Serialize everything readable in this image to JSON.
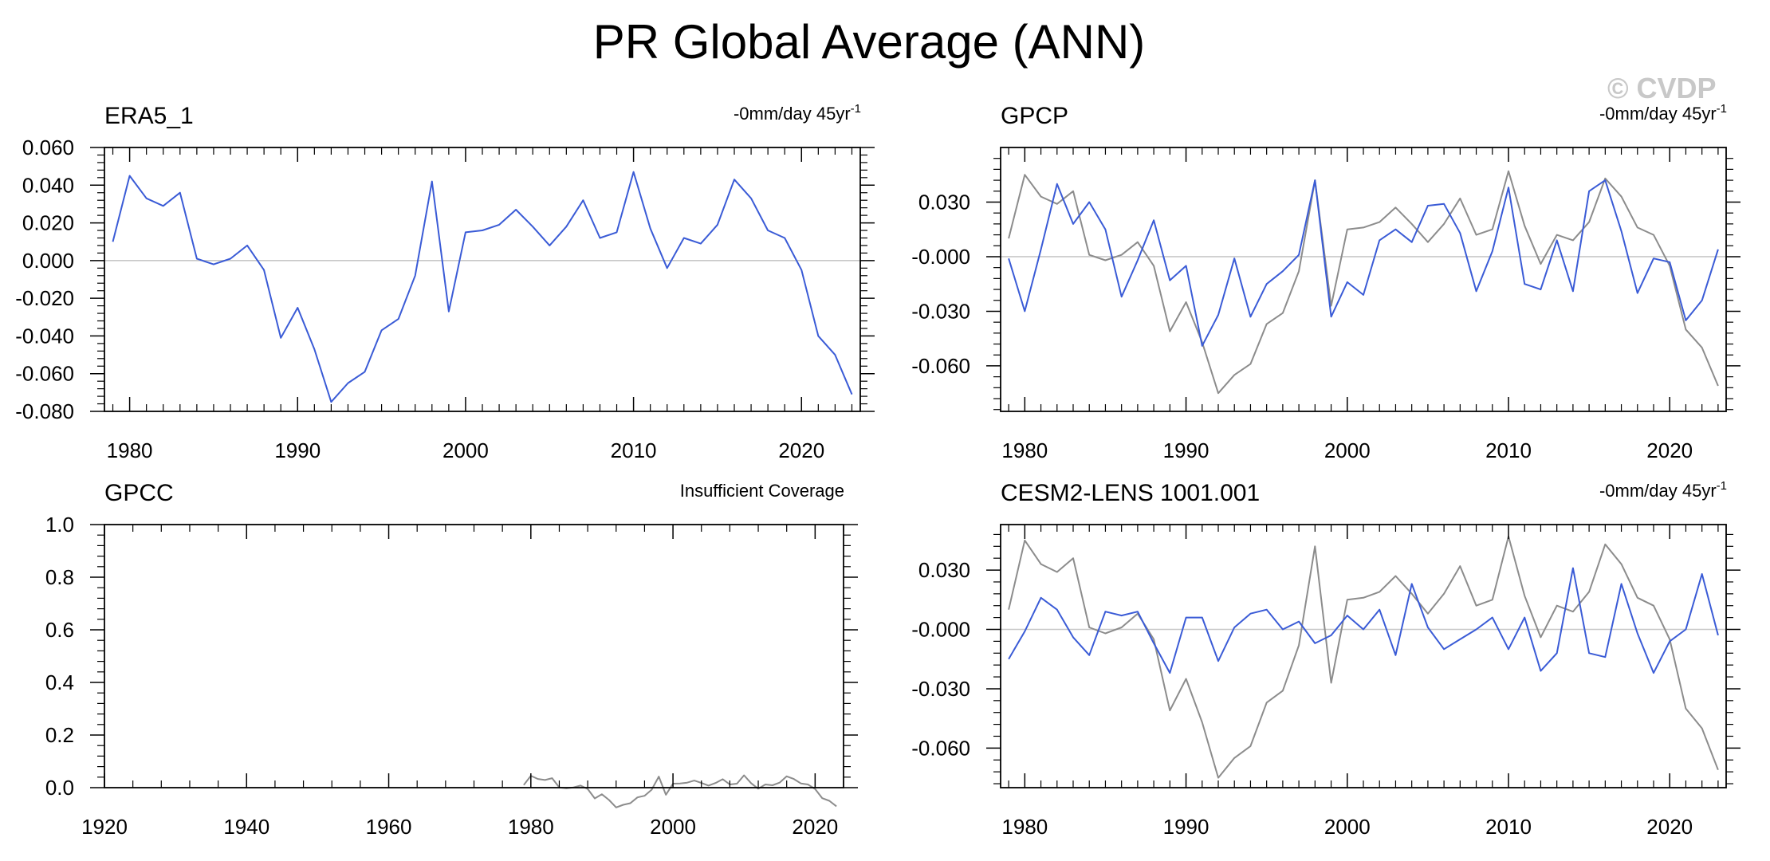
{
  "title": "PR Global Average (ANN)",
  "watermark": "© CVDP",
  "colors": {
    "primary": "#3a5bd6",
    "reference": "#8c8c8c",
    "zero": "#c8c8c8",
    "axis": "#000000"
  },
  "chart_data": [
    {
      "type": "line",
      "title": "ERA5_1",
      "trend_label": {
        "text": "-0mm/day 45yr",
        "sup": "-1"
      },
      "xlabel": "",
      "ylabel": "",
      "xlim": [
        1978.5,
        2023.5
      ],
      "ylim": [
        -0.08,
        0.06
      ],
      "xticks": [
        1980,
        1990,
        2000,
        2010,
        2020
      ],
      "yticks": [
        -0.08,
        -0.06,
        -0.04,
        -0.02,
        0.0,
        0.02,
        0.04,
        0.06
      ],
      "ytick_labels": [
        "-0.080",
        "-0.060",
        "-0.040",
        "-0.020",
        "0.000",
        "0.020",
        "0.040",
        "0.060"
      ],
      "zero_line": true,
      "series": [
        {
          "name": "ERA5_1",
          "role": "primary",
          "x_start": 1979,
          "values": [
            0.01,
            0.045,
            0.033,
            0.029,
            0.036,
            0.001,
            -0.002,
            0.001,
            0.008,
            -0.005,
            -0.041,
            -0.025,
            -0.047,
            -0.075,
            -0.065,
            -0.059,
            -0.037,
            -0.031,
            -0.008,
            0.042,
            -0.027,
            0.015,
            0.016,
            0.019,
            0.027,
            0.018,
            0.008,
            0.018,
            0.032,
            0.012,
            0.015,
            0.047,
            0.017,
            -0.004,
            0.012,
            0.009,
            0.019,
            0.043,
            0.033,
            0.016,
            0.012,
            -0.005,
            -0.04,
            -0.05,
            -0.071
          ]
        }
      ]
    },
    {
      "type": "line",
      "title": "GPCP",
      "trend_label": {
        "text": "-0mm/day 45yr",
        "sup": "-1"
      },
      "xlabel": "",
      "ylabel": "",
      "xlim": [
        1978.5,
        2023.5
      ],
      "ylim": [
        -0.085,
        0.06
      ],
      "xticks": [
        1980,
        1990,
        2000,
        2010,
        2020
      ],
      "yticks": [
        -0.06,
        -0.03,
        0.0,
        0.03
      ],
      "ytick_labels": [
        "-0.060",
        "-0.030",
        "-0.000",
        "0.030"
      ],
      "zero_line": true,
      "series": [
        {
          "name": "ERA5_1",
          "role": "reference",
          "x_start": 1979,
          "values": [
            0.01,
            0.045,
            0.033,
            0.029,
            0.036,
            0.001,
            -0.002,
            0.001,
            0.008,
            -0.005,
            -0.041,
            -0.025,
            -0.047,
            -0.075,
            -0.065,
            -0.059,
            -0.037,
            -0.031,
            -0.008,
            0.042,
            -0.027,
            0.015,
            0.016,
            0.019,
            0.027,
            0.018,
            0.008,
            0.018,
            0.032,
            0.012,
            0.015,
            0.047,
            0.017,
            -0.004,
            0.012,
            0.009,
            0.019,
            0.043,
            0.033,
            0.016,
            0.012,
            -0.005,
            -0.04,
            -0.05,
            -0.071
          ]
        },
        {
          "name": "GPCP",
          "role": "primary",
          "x_start": 1979,
          "values": [
            -0.001,
            -0.03,
            0.004,
            0.04,
            0.018,
            0.03,
            0.015,
            -0.022,
            -0.002,
            0.02,
            -0.013,
            -0.005,
            -0.049,
            -0.032,
            -0.001,
            -0.033,
            -0.015,
            -0.008,
            0.001,
            0.042,
            -0.033,
            -0.014,
            -0.021,
            0.009,
            0.015,
            0.008,
            0.028,
            0.029,
            0.013,
            -0.019,
            0.003,
            0.038,
            -0.015,
            -0.018,
            0.009,
            -0.019,
            0.036,
            0.042,
            0.014,
            -0.02,
            -0.001,
            -0.003,
            -0.035,
            -0.024,
            0.004
          ]
        }
      ]
    },
    {
      "type": "line",
      "title": "GPCC",
      "trend_label": {
        "text": "Insufficient Coverage",
        "sup": ""
      },
      "xlabel": "",
      "ylabel": "",
      "xlim": [
        1920,
        2024
      ],
      "ylim": [
        0.0,
        1.0
      ],
      "xticks": [
        1920,
        1940,
        1960,
        1980,
        2000,
        2020
      ],
      "yticks": [
        0.0,
        0.2,
        0.4,
        0.6,
        0.8,
        1.0
      ],
      "ytick_labels": [
        "0.0",
        "0.2",
        "0.4",
        "0.6",
        "0.8",
        "1.0"
      ],
      "zero_line": false,
      "series": [
        {
          "name": "ERA5_1",
          "role": "reference",
          "x_start": 1979,
          "values": [
            0.01,
            0.045,
            0.033,
            0.029,
            0.036,
            0.001,
            -0.002,
            0.001,
            0.008,
            -0.005,
            -0.041,
            -0.025,
            -0.047,
            -0.075,
            -0.065,
            -0.059,
            -0.037,
            -0.031,
            -0.008,
            0.042,
            -0.027,
            0.015,
            0.016,
            0.019,
            0.027,
            0.018,
            0.008,
            0.018,
            0.032,
            0.012,
            0.015,
            0.047,
            0.017,
            -0.004,
            0.012,
            0.009,
            0.019,
            0.043,
            0.033,
            0.016,
            0.012,
            -0.005,
            -0.04,
            -0.05,
            -0.071
          ]
        }
      ]
    },
    {
      "type": "line",
      "title": "CESM2-LENS 1001.001",
      "trend_label": {
        "text": "-0mm/day 45yr",
        "sup": "-1"
      },
      "xlabel": "",
      "ylabel": "",
      "xlim": [
        1978.5,
        2023.5
      ],
      "ylim": [
        -0.08,
        0.053
      ],
      "xticks": [
        1980,
        1990,
        2000,
        2010,
        2020
      ],
      "yticks": [
        -0.06,
        -0.03,
        0.0,
        0.03
      ],
      "ytick_labels": [
        "-0.060",
        "-0.030",
        "-0.000",
        "0.030"
      ],
      "zero_line": true,
      "series": [
        {
          "name": "ERA5_1",
          "role": "reference",
          "x_start": 1979,
          "values": [
            0.01,
            0.045,
            0.033,
            0.029,
            0.036,
            0.001,
            -0.002,
            0.001,
            0.008,
            -0.005,
            -0.041,
            -0.025,
            -0.047,
            -0.075,
            -0.065,
            -0.059,
            -0.037,
            -0.031,
            -0.008,
            0.042,
            -0.027,
            0.015,
            0.016,
            0.019,
            0.027,
            0.018,
            0.008,
            0.018,
            0.032,
            0.012,
            0.015,
            0.047,
            0.017,
            -0.004,
            0.012,
            0.009,
            0.019,
            0.043,
            0.033,
            0.016,
            0.012,
            -0.005,
            -0.04,
            -0.05,
            -0.071
          ]
        },
        {
          "name": "CESM2-LENS 1001.001",
          "role": "primary",
          "x_start": 1979,
          "values": [
            -0.015,
            -0.001,
            0.016,
            0.01,
            -0.004,
            -0.013,
            0.009,
            0.007,
            0.009,
            -0.007,
            -0.022,
            0.006,
            0.006,
            -0.016,
            0.001,
            0.008,
            0.01,
            0.0,
            0.004,
            -0.007,
            -0.003,
            0.007,
            0.0,
            0.01,
            -0.013,
            0.023,
            0.001,
            -0.01,
            -0.005,
            0.0,
            0.006,
            -0.01,
            0.006,
            -0.021,
            -0.012,
            0.031,
            -0.012,
            -0.014,
            0.023,
            -0.002,
            -0.022,
            -0.006,
            0.0,
            0.028,
            -0.003
          ]
        }
      ]
    }
  ]
}
